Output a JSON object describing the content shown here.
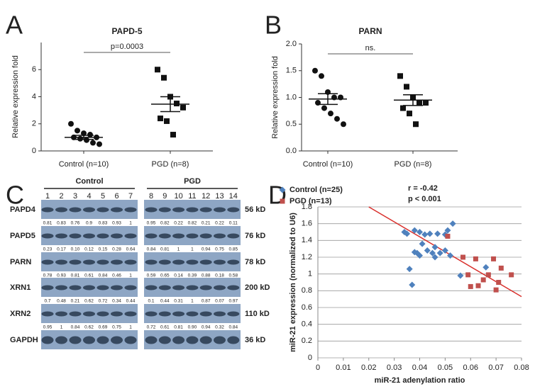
{
  "chart_data": [
    {
      "type": "dotplot",
      "panel": "A",
      "title": "PAPD-5",
      "ylabel": "Relative expression fold",
      "categories": [
        "Control (n=10)",
        "PGD (n=8)"
      ],
      "points": [
        [
          2.0,
          1.5,
          1.3,
          1.2,
          1.0,
          1.0,
          0.9,
          0.8,
          0.6,
          0.5
        ],
        [
          6.0,
          5.4,
          4.0,
          3.5,
          3.2,
          2.4,
          2.2,
          1.2
        ]
      ],
      "means": [
        1.0,
        3.45
      ],
      "errors": [
        0.15,
        0.55
      ],
      "ylim": [
        0,
        8
      ],
      "yticks": [
        0,
        2,
        4,
        6
      ],
      "annotation": "p=0.0003",
      "color": "#111111"
    },
    {
      "type": "dotplot",
      "panel": "B",
      "title": "PARN",
      "ylabel": "Relative expression fold",
      "categories": [
        "Control (n=10)",
        "PGD (n=8)"
      ],
      "points": [
        [
          1.5,
          1.4,
          1.1,
          1.0,
          1.0,
          0.9,
          0.8,
          0.7,
          0.6,
          0.5
        ],
        [
          1.4,
          1.2,
          1.0,
          0.9,
          0.9,
          0.8,
          0.7,
          0.5
        ]
      ],
      "means": [
        0.97,
        0.95
      ],
      "errors": [
        0.1,
        0.1
      ],
      "ylim": [
        0,
        2
      ],
      "yticks": [
        {
          "value": 0,
          "label": "0.0"
        },
        0.5,
        {
          "value": 1,
          "label": "1.0"
        },
        1.5,
        {
          "value": 2,
          "label": "2.0"
        }
      ],
      "annotation": "ns.",
      "color": "#111111"
    },
    {
      "type": "scatter",
      "panel": "D",
      "xlabel": "miR-21 adenylation ratio",
      "ylabel": "miR-21 expression (normalized to U6)",
      "xlim": [
        0,
        0.08
      ],
      "xticks": [
        0,
        0.01,
        0.02,
        0.03,
        0.04,
        0.05,
        0.06,
        0.07,
        0.08
      ],
      "ylim": [
        0,
        1.8
      ],
      "yticks": [
        0,
        0.2,
        0.4,
        0.6,
        0.8,
        1,
        1.2,
        1.4,
        1.6,
        1.8
      ],
      "grid": true,
      "legend": "top-left",
      "series": [
        {
          "name": "Control (n=25)",
          "color": "#4f81bd",
          "marker": "diamond",
          "x": [
            0.034,
            0.035,
            0.036,
            0.037,
            0.038,
            0.038,
            0.039,
            0.04,
            0.04,
            0.041,
            0.042,
            0.043,
            0.044,
            0.045,
            0.046,
            0.046,
            0.047,
            0.048,
            0.05,
            0.05,
            0.051,
            0.052,
            0.053,
            0.056,
            0.066
          ],
          "y": [
            1.5,
            1.48,
            1.06,
            0.87,
            1.26,
            1.52,
            1.25,
            1.5,
            1.22,
            1.36,
            1.47,
            1.28,
            1.48,
            1.25,
            1.2,
            1.32,
            1.48,
            1.25,
            1.47,
            1.28,
            1.52,
            1.22,
            1.6,
            0.98,
            1.08
          ]
        },
        {
          "name": "PGD (n=13)",
          "color": "#c0504d",
          "marker": "square",
          "x": [
            0.051,
            0.057,
            0.059,
            0.06,
            0.062,
            0.063,
            0.065,
            0.067,
            0.069,
            0.07,
            0.071,
            0.072,
            0.076
          ],
          "y": [
            1.45,
            1.2,
            0.99,
            0.85,
            1.18,
            0.86,
            0.93,
            0.99,
            1.18,
            0.81,
            0.9,
            1.07,
            0.99
          ]
        }
      ],
      "trendline": {
        "x": [
          0.02,
          0.08
        ],
        "y": [
          1.8,
          0.73
        ],
        "color": "#d9302c"
      },
      "annotations": [
        "r = -0.42",
        "p < 0.001"
      ]
    }
  ],
  "blot": {
    "panel": "C",
    "groups": [
      {
        "label": "Control",
        "lanes": [
          "1",
          "2",
          "3",
          "4",
          "5",
          "6",
          "7"
        ]
      },
      {
        "label": "PGD",
        "lanes": [
          "8",
          "9",
          "10",
          "11",
          "12",
          "13",
          "14"
        ]
      }
    ],
    "rows": [
      {
        "name": "PAPD4",
        "size": "56 kD",
        "quant": [
          "0.81",
          "0.83",
          "0.76",
          "0.9",
          "0.83",
          "0.93",
          "1",
          "0.95",
          "0.82",
          "0.22",
          "0.82",
          "0.21",
          "0.22",
          "0.11"
        ]
      },
      {
        "name": "PAPD5",
        "size": "76 kD",
        "quant": [
          "0.23",
          "0.17",
          "0.10",
          "0.12",
          "0.15",
          "0.28",
          "0.64",
          "0.84",
          "0.81",
          "1",
          "1",
          "0.94",
          "0.75",
          "0.85"
        ]
      },
      {
        "name": "PARN",
        "size": "78 kD",
        "quant": [
          "0.78",
          "0.93",
          "0.81",
          "0.61",
          "0.84",
          "0.46",
          "1",
          "0.59",
          "0.65",
          "0.14",
          "0.39",
          "0.88",
          "0.18",
          "0.58"
        ]
      },
      {
        "name": "XRN1",
        "size": "200 kD",
        "quant": [
          "0.7",
          "0.48",
          "0.21",
          "0.62",
          "0.72",
          "0.34",
          "0.44",
          "0.1",
          "0.44",
          "0.31",
          "1",
          "0.87",
          "0.07",
          "0.97"
        ]
      },
      {
        "name": "XRN2",
        "size": "110 kD",
        "quant": [
          "0.95",
          "1",
          "0.84",
          "0.62",
          "0.69",
          "0.75",
          "1",
          "0.72",
          "0.61",
          "0.81",
          "0.90",
          "0.94",
          "0.32",
          "0.84"
        ]
      },
      {
        "name": "GAPDH",
        "size": "36 kD"
      }
    ]
  }
}
